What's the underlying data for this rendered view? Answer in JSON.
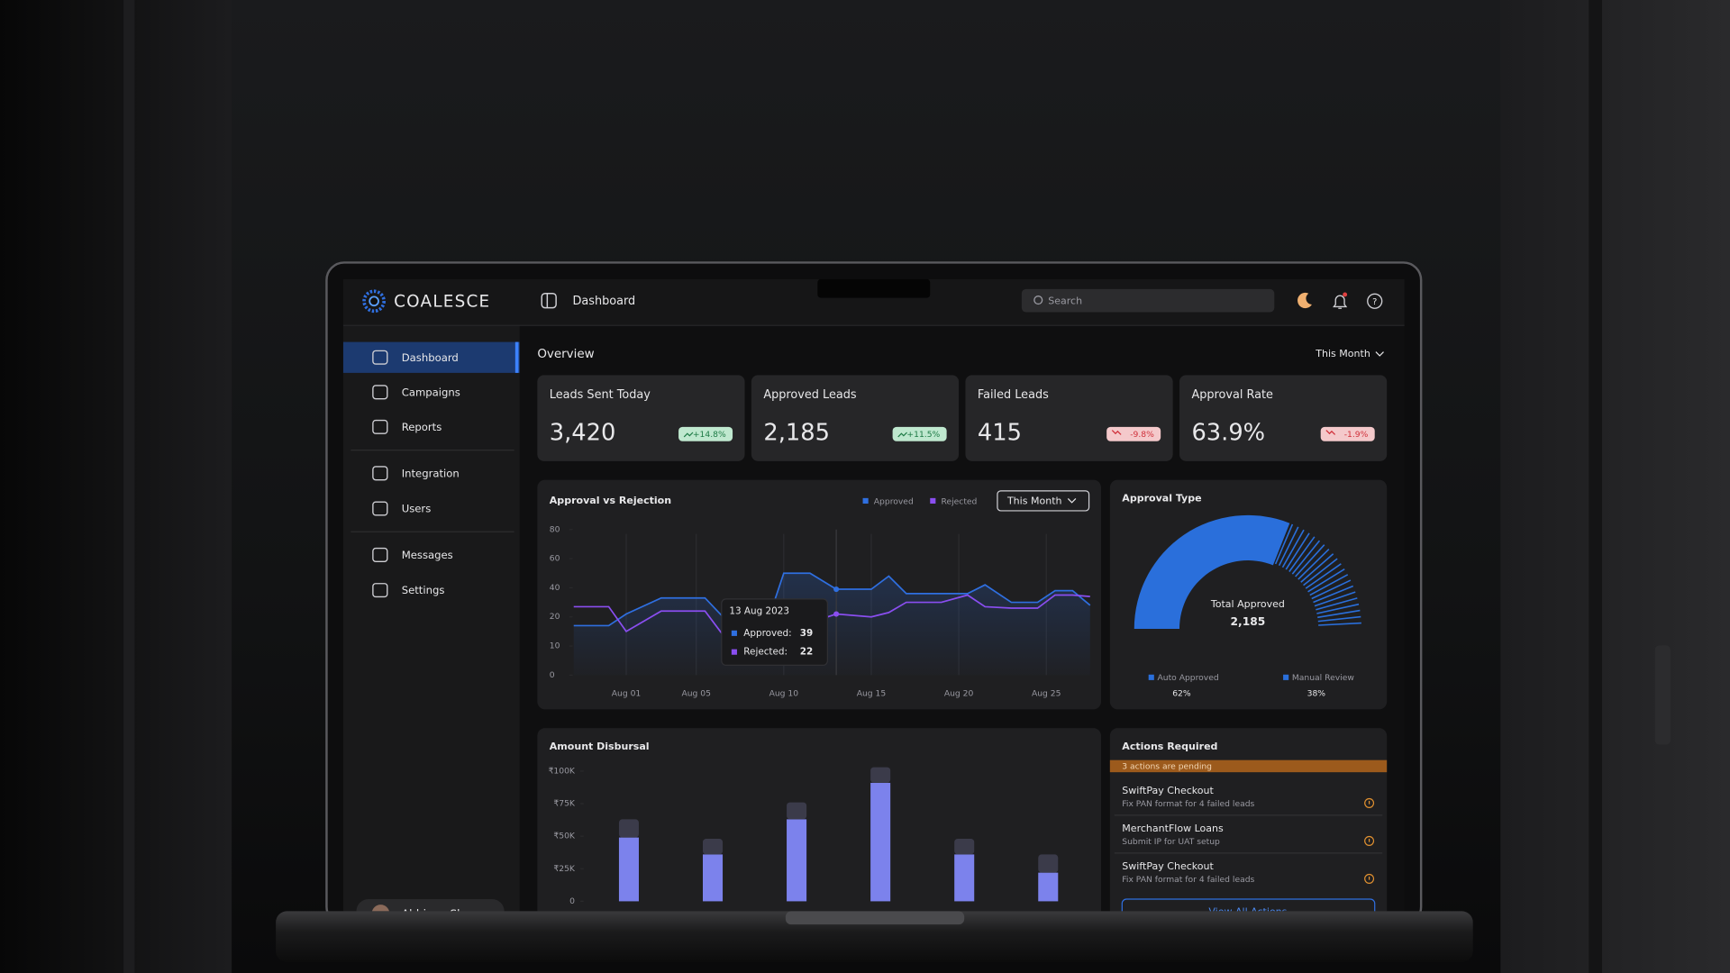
{
  "app": {
    "brand": "COALESCE",
    "page_title": "Dashboard",
    "search_placeholder": "Search"
  },
  "nav": [
    "Dashboard",
    "Campaigns",
    "Reports",
    "Integration",
    "Users",
    "Messages",
    "Settings"
  ],
  "user": "Abhinav Sharma",
  "overview": {
    "title": "Overview",
    "period": "This Month"
  },
  "kpis": [
    {
      "label": "Leads Sent Today",
      "value": "3,420",
      "change": "+14.8%"
    },
    {
      "label": "Approved Leads",
      "value": "2,185",
      "change": "+11.5%"
    },
    {
      "label": "Failed Leads",
      "value": "415",
      "change": "-9.8%"
    },
    {
      "label": "Approval Rate",
      "value": "63.9%",
      "change": "-1.9%"
    }
  ],
  "approval_chart": {
    "type": "line",
    "title": "Approval vs Rejection",
    "period": "This Month",
    "x": [
      -2,
      0,
      1,
      3,
      5.5,
      7,
      9,
      10,
      11.5,
      13,
      15,
      16,
      17,
      19,
      20.5,
      21.5,
      23,
      24.5,
      25.5,
      26.5,
      27.5
    ],
    "xlim": [
      -2,
      27.5
    ],
    "xticks": [
      {
        "value": 1,
        "label": "Aug 01"
      },
      {
        "value": 5,
        "label": "Aug 05"
      },
      {
        "value": 10,
        "label": "Aug 10"
      },
      {
        "value": 15,
        "label": "Aug 15"
      },
      {
        "value": 20,
        "label": "Aug 20"
      },
      {
        "value": 25,
        "label": "Aug 25"
      }
    ],
    "ylim": [
      0,
      80
    ],
    "yticks": [
      0,
      10,
      20,
      40,
      60,
      80
    ],
    "series": [
      {
        "name": "Approved",
        "color": "#2f6fe0",
        "values": [
          17,
          17,
          22,
          33,
          33,
          17,
          17,
          50,
          50,
          39,
          39,
          48,
          36,
          36,
          36,
          42,
          30,
          30,
          38,
          38,
          28
        ]
      },
      {
        "name": "Rejected",
        "color": "#8a4ef0",
        "values": [
          27,
          27,
          15,
          24,
          24,
          10,
          12,
          16,
          18,
          22,
          20,
          23,
          30,
          30,
          35,
          27,
          26,
          26,
          35,
          35,
          34
        ]
      }
    ],
    "tooltip": {
      "title": "13 Aug 2023",
      "labels": [
        "Approved:",
        "Rejected:"
      ]
    }
  },
  "approval_type": {
    "type": "pie",
    "title": "Approval Type",
    "center_label": "Total Approved",
    "categories": [
      "Auto Approved",
      "Manual Review"
    ],
    "values": [
      62,
      38
    ],
    "value_labels": [
      "62%",
      "38%"
    ],
    "colors": [
      "#2a6fdb",
      "#2a6fdb"
    ]
  },
  "disbursal_chart": {
    "type": "bar",
    "title": "Amount Disbursal",
    "ylim": [
      0,
      100000
    ],
    "yticks": [
      0,
      {
        "value": 25000,
        "label": "₹25K"
      },
      {
        "value": 50000,
        "label": "₹50K"
      },
      {
        "value": 75000,
        "label": "₹75K"
      },
      {
        "value": 100000,
        "label": "₹100K"
      }
    ],
    "series": [
      {
        "color": "#7c82ec",
        "values": [
          49000,
          36000,
          63000,
          91000,
          36000,
          22000
        ]
      },
      {
        "color": "#3b3b4a",
        "values": [
          14000,
          12000,
          13000,
          12000,
          12000,
          14000
        ]
      }
    ]
  },
  "actions": {
    "title": "Actions Required",
    "banner": "3 actions are pending",
    "items": [
      {
        "title": "SwiftPay Checkout",
        "detail": "Fix PAN format for 4 failed leads"
      },
      {
        "title": "MerchantFlow Loans",
        "detail": "Submit IP for UAT setup"
      },
      {
        "title": "SwiftPay Checkout",
        "detail": "Fix PAN format for 4 failed leads"
      }
    ],
    "button": "View All Actions"
  }
}
